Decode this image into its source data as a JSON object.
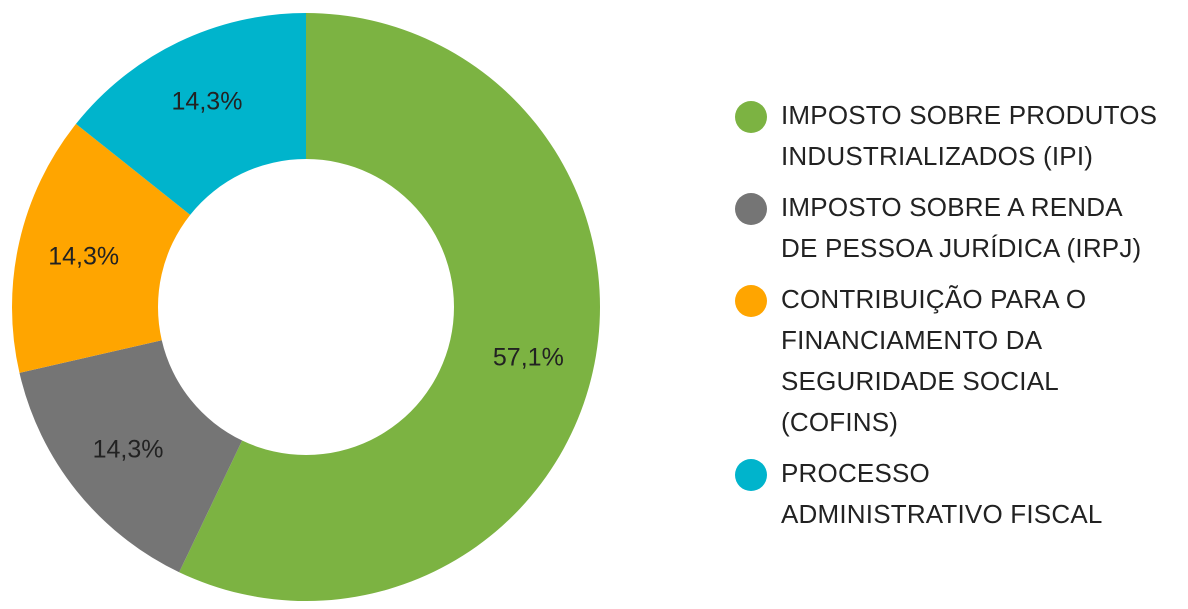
{
  "chart_data": {
    "type": "pie",
    "subtype": "donut",
    "categories": [
      "IMPOSTO SOBRE PRODUTOS INDUSTRIALIZADOS (IPI)",
      "IMPOSTO SOBRE A RENDA DE PESSOA JURÍDICA (IRPJ)",
      "CONTRIBUIÇÃO PARA O FINANCIAMENTO DA SEGURIDADE SOCIAL (COFINS)",
      "PROCESSO ADMINISTRATIVO FISCAL"
    ],
    "values": [
      57.1,
      14.3,
      14.3,
      14.3
    ],
    "labels": [
      "57,1%",
      "14,3%",
      "14,3%",
      "14,3%"
    ],
    "colors": [
      "#7cb342",
      "#757575",
      "#ffa500",
      "#00b4cc"
    ],
    "legend_position": "right"
  },
  "legend": {
    "items": [
      {
        "lines": [
          "IMPOSTO SOBRE PRODUTOS",
          "INDUSTRIALIZADOS (IPI)"
        ],
        "color": "#7cb342"
      },
      {
        "lines": [
          "IMPOSTO SOBRE A RENDA",
          "DE PESSOA JURÍDICA (IRPJ)"
        ],
        "color": "#757575"
      },
      {
        "lines": [
          "CONTRIBUIÇÃO PARA O",
          "FINANCIAMENTO DA",
          "SEGURIDADE SOCIAL",
          "(COFINS)"
        ],
        "color": "#ffa500"
      },
      {
        "lines": [
          "PROCESSO",
          "ADMINISTRATIVO FISCAL"
        ],
        "color": "#00b4cc"
      }
    ]
  }
}
